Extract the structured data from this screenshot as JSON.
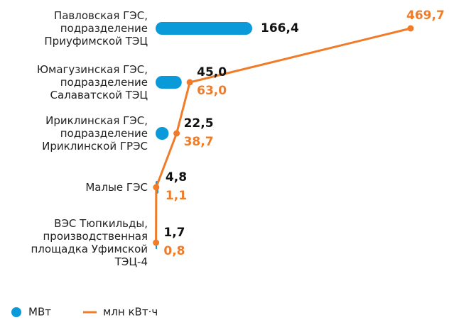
{
  "chart_data": {
    "type": "bar_line",
    "categories": [
      [
        "Павловская ГЭС,",
        "подразделение",
        "Приуфимской ТЭЦ"
      ],
      [
        "Юмагузинская ГЭС,",
        "подразделение",
        "Салаватской ТЭЦ"
      ],
      [
        "Ириклинская ГЭС,",
        "подразделение",
        "Ириклинской ГРЭС"
      ],
      [
        "Малые ГЭС"
      ],
      [
        "ВЭС Тюпкильды,",
        "производственная",
        "площадка Уфимской",
        "ТЭЦ-4"
      ]
    ],
    "series": [
      {
        "name": "МВт",
        "color": "#0a9ad9",
        "type": "bar",
        "values": [
          166.4,
          45.0,
          22.5,
          4.8,
          1.7
        ],
        "value_labels": [
          "166,4",
          "45,0",
          "22,5",
          "4,8",
          "1,7"
        ]
      },
      {
        "name": "млн кВт·ч",
        "color": "#f07c2a",
        "type": "line",
        "values": [
          469.7,
          63.0,
          38.7,
          1.1,
          0.8
        ],
        "value_labels": [
          "469,7",
          "63,0",
          "38,7",
          "1,1",
          "0,8"
        ]
      }
    ],
    "legend": "bottom-left"
  }
}
